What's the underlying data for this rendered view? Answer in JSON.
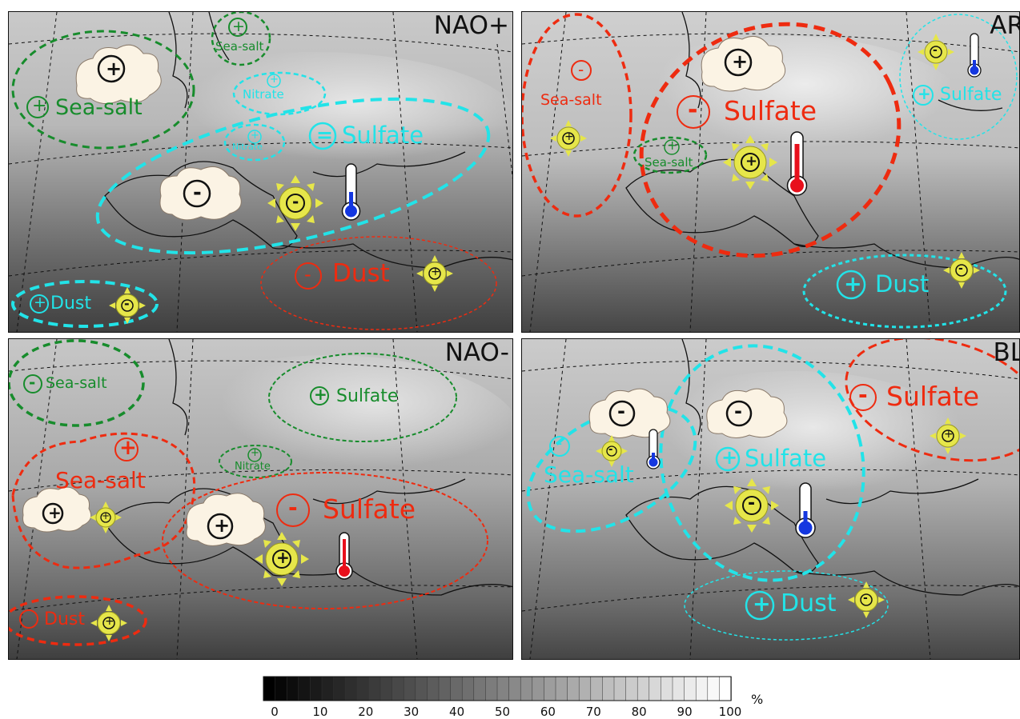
{
  "panels": [
    {
      "title": "NAO+",
      "labels": [
        "Sea-salt",
        "Sea-salt",
        "Nitrate",
        "Nitrate",
        "Sulfate",
        "Dust",
        "Dust"
      ]
    },
    {
      "title": "AR",
      "labels": [
        "Sea-salt",
        "Sulfate",
        "Sea-salt",
        "Sulfate",
        "Dust"
      ]
    },
    {
      "title": "NAO-",
      "labels": [
        "Sea-salt",
        "Sulfate",
        "Sea-salt",
        "Nitrate",
        "Sulfate",
        "Dust"
      ]
    },
    {
      "title": "BL",
      "labels": [
        "Sulfate",
        "Sea-salt",
        "Sulfate",
        "Dust"
      ]
    }
  ],
  "signs": {
    "plus": "+",
    "minus": "-",
    "equal": "="
  },
  "colorbar": {
    "ticks": [
      "0",
      "10",
      "20",
      "30",
      "40",
      "50",
      "60",
      "70",
      "80",
      "90",
      "100"
    ],
    "unit": "%",
    "range": [
      0,
      100
    ]
  },
  "colors": {
    "decrease": "#ee2b10",
    "increase_cyan": "#22e3e8",
    "increase_green": "#178c2c",
    "sun": "#e6e64a",
    "cloud": "#fbf3e4"
  },
  "icons": [
    "cloud-icon",
    "sun-icon",
    "thermometer-icon"
  ]
}
